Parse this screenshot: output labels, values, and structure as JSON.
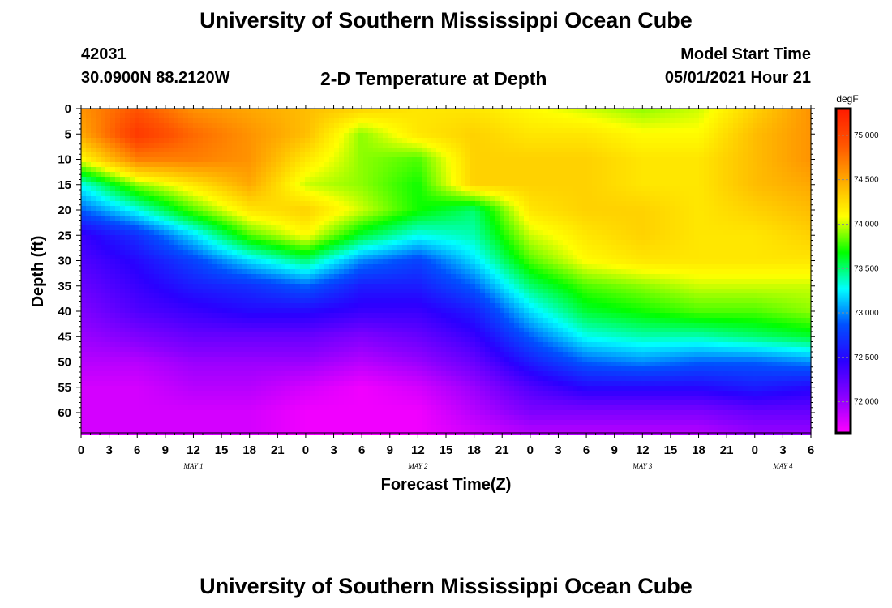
{
  "header": {
    "title": "University of Southern Mississippi Ocean Cube",
    "station_id": "42031",
    "station_coords": "30.0900N  88.2120W",
    "chart_title": "2-D Temperature at Depth",
    "model_start_label": "Model Start Time",
    "model_start_value": "05/01/2021 Hour 21"
  },
  "footer": {
    "title": "University of Southern Mississippi Ocean Cube"
  },
  "chart_data": {
    "type": "heatmap",
    "title": "2-D Temperature at Depth",
    "xlabel": "Forecast Time(Z)",
    "ylabel": "Depth (ft)",
    "x_ticks": [
      "0",
      "3",
      "6",
      "9",
      "12",
      "15",
      "18",
      "21",
      "0",
      "3",
      "6",
      "9",
      "12",
      "15",
      "18",
      "21",
      "0",
      "3",
      "6",
      "9",
      "12",
      "15",
      "18",
      "21",
      "0",
      "3",
      "6"
    ],
    "x_day_labels": [
      {
        "label": "MAY 1",
        "tick_index": 4
      },
      {
        "label": "MAY 2",
        "tick_index": 12
      },
      {
        "label": "MAY 3",
        "tick_index": 20
      },
      {
        "label": "MAY 4",
        "tick_index": 25
      }
    ],
    "y_ticks": [
      0,
      5,
      10,
      15,
      20,
      25,
      30,
      35,
      40,
      45,
      50,
      55,
      60
    ],
    "ylim": [
      0,
      64
    ],
    "y_inverted": true,
    "colorbar": {
      "unit": "degF",
      "ticks": [
        "72.000",
        "72.500",
        "73.000",
        "73.500",
        "74.000",
        "74.500",
        "75.000"
      ],
      "range": [
        71.65,
        75.3
      ],
      "colors": [
        "#ff00ff",
        "#8a00ff",
        "#2a00ff",
        "#0050ff",
        "#00ffff",
        "#00ff00",
        "#ffff00",
        "#ffaa00",
        "#ff5500",
        "#ff1a00"
      ]
    },
    "temperature_field": {
      "hours": [
        0,
        6,
        12,
        18,
        24,
        30,
        36,
        42,
        48,
        54,
        60,
        66,
        72,
        78
      ],
      "depths_ft": [
        0,
        5,
        10,
        15,
        20,
        25,
        30,
        35,
        40,
        45,
        50,
        55,
        60,
        64
      ],
      "values_degF": [
        [
          74.6,
          74.9,
          74.6,
          74.5,
          74.4,
          74.3,
          74.2,
          74.2,
          74.1,
          74.0,
          73.9,
          74.0,
          74.3,
          74.6
        ],
        [
          74.5,
          75.1,
          74.8,
          74.6,
          74.4,
          73.9,
          74.2,
          74.3,
          74.2,
          74.2,
          74.1,
          74.1,
          74.4,
          74.6
        ],
        [
          74.1,
          74.7,
          74.7,
          74.6,
          74.2,
          73.9,
          73.8,
          74.3,
          74.3,
          74.3,
          74.2,
          74.2,
          74.4,
          74.6
        ],
        [
          73.3,
          73.9,
          74.2,
          74.5,
          74.0,
          73.9,
          73.7,
          74.3,
          74.3,
          74.3,
          74.2,
          74.2,
          74.4,
          74.5
        ],
        [
          72.9,
          73.3,
          73.8,
          74.2,
          74.3,
          74.0,
          73.7,
          73.5,
          74.2,
          74.3,
          74.3,
          74.2,
          74.3,
          74.4
        ],
        [
          72.4,
          72.7,
          73.2,
          73.8,
          74.1,
          73.6,
          73.3,
          73.4,
          74.0,
          74.2,
          74.3,
          74.2,
          74.2,
          74.3
        ],
        [
          72.3,
          72.5,
          72.8,
          73.2,
          73.5,
          73.0,
          72.8,
          73.2,
          73.8,
          74.1,
          74.2,
          74.2,
          74.2,
          74.2
        ],
        [
          72.2,
          72.4,
          72.6,
          72.7,
          72.9,
          72.6,
          72.6,
          72.9,
          73.5,
          73.8,
          73.9,
          74.0,
          74.0,
          74.0
        ],
        [
          72.1,
          72.3,
          72.4,
          72.5,
          72.5,
          72.4,
          72.4,
          72.6,
          73.2,
          73.6,
          73.7,
          73.8,
          73.8,
          73.9
        ],
        [
          72.0,
          72.1,
          72.2,
          72.2,
          72.2,
          72.1,
          72.2,
          72.4,
          72.9,
          73.3,
          73.4,
          73.4,
          73.5,
          73.6
        ],
        [
          71.9,
          71.9,
          72.0,
          72.0,
          72.0,
          71.9,
          72.0,
          72.2,
          72.6,
          72.9,
          73.0,
          72.9,
          72.9,
          73.0
        ],
        [
          71.8,
          71.8,
          71.9,
          71.9,
          71.8,
          71.7,
          71.8,
          72.0,
          72.3,
          72.5,
          72.5,
          72.5,
          72.6,
          72.5
        ],
        [
          71.8,
          71.8,
          71.8,
          71.8,
          71.7,
          71.7,
          71.7,
          71.9,
          72.1,
          72.1,
          72.1,
          72.1,
          72.2,
          72.2
        ],
        [
          71.8,
          71.8,
          71.8,
          71.8,
          71.7,
          71.7,
          71.7,
          71.8,
          71.9,
          71.9,
          71.9,
          71.9,
          72.0,
          72.0
        ]
      ]
    }
  }
}
